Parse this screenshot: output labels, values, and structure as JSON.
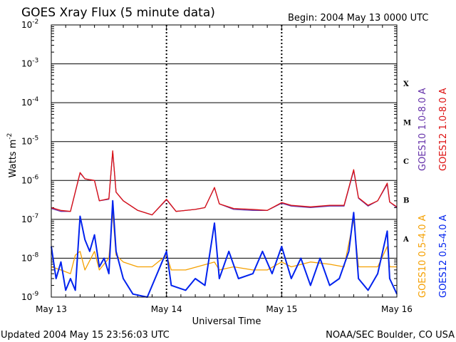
{
  "header": {
    "title": "GOES Xray Flux (5 minute data)",
    "begin": "Begin:  2004 May 13 0000 UTC"
  },
  "footer": {
    "updated": "Updated 2004 May 15 23:56:03 UTC",
    "credit": "NOAA/SEC Boulder, CO USA"
  },
  "chart_data": {
    "type": "line",
    "title": "GOES Xray Flux (5 minute data)",
    "xlabel": "Universal Time",
    "ylabel": "Watts m",
    "ylabel_exponent": "-2",
    "yscale": "log",
    "ylim": [
      1e-09,
      0.01
    ],
    "xlim": [
      0,
      72
    ],
    "x_unit": "hours since 2004 May 13 0000 UTC",
    "x_ticks": [
      {
        "x": 0,
        "label": "May 13"
      },
      {
        "x": 24,
        "label": "May 14"
      },
      {
        "x": 48,
        "label": "May 15"
      },
      {
        "x": 72,
        "label": "May 16"
      }
    ],
    "y_ticks": [
      {
        "mantissa": "10",
        "exp": "-9",
        "value": 1e-09
      },
      {
        "mantissa": "10",
        "exp": "-8",
        "value": 1e-08
      },
      {
        "mantissa": "10",
        "exp": "-7",
        "value": 1e-07
      },
      {
        "mantissa": "10",
        "exp": "-6",
        "value": 1e-06
      },
      {
        "mantissa": "10",
        "exp": "-5",
        "value": 1e-05
      },
      {
        "mantissa": "10",
        "exp": "-4",
        "value": 0.0001
      },
      {
        "mantissa": "10",
        "exp": "-3",
        "value": 0.001
      },
      {
        "mantissa": "10",
        "exp": "-2",
        "value": 0.01
      }
    ],
    "flare_classes": [
      {
        "label": "A",
        "value": 3.16e-08
      },
      {
        "label": "B",
        "value": 3.16e-07
      },
      {
        "label": "C",
        "value": 3.16e-06
      },
      {
        "label": "M",
        "value": 3.16e-05
      },
      {
        "label": "X",
        "value": 0.000316
      }
    ],
    "grid": "horizontal at each decade, dashed verticals at day boundaries",
    "series": [
      {
        "name": "GOES10 1.0-8.0 A",
        "color": "#6633aa",
        "points": [
          [
            0,
            1.9e-07
          ],
          [
            2,
            1.6e-07
          ],
          [
            4,
            1.6e-07
          ],
          [
            6,
            1.55e-06
          ],
          [
            7,
            1.1e-06
          ],
          [
            9,
            1e-06
          ],
          [
            10,
            3e-07
          ],
          [
            12,
            3.3e-07
          ],
          [
            12.8,
            5.5e-06
          ],
          [
            13.5,
            5e-07
          ],
          [
            15,
            3e-07
          ],
          [
            18,
            1.7e-07
          ],
          [
            21,
            1.3e-07
          ],
          [
            24,
            3.2e-07
          ],
          [
            26,
            1.6e-07
          ],
          [
            30,
            1.8e-07
          ],
          [
            32,
            2e-07
          ],
          [
            34,
            6.5e-07
          ],
          [
            35,
            2.5e-07
          ],
          [
            38,
            1.8e-07
          ],
          [
            42,
            1.7e-07
          ],
          [
            45,
            1.7e-07
          ],
          [
            48,
            2.6e-07
          ],
          [
            50,
            2.2e-07
          ],
          [
            54,
            2e-07
          ],
          [
            58,
            2.2e-07
          ],
          [
            61,
            2.2e-07
          ],
          [
            63,
            1.8e-06
          ],
          [
            64,
            3.5e-07
          ],
          [
            66,
            2.2e-07
          ],
          [
            68,
            3e-07
          ],
          [
            70,
            8e-07
          ],
          [
            70.5,
            2.8e-07
          ],
          [
            72,
            2e-07
          ]
        ]
      },
      {
        "name": "GOES12 1.0-8.0 A",
        "color": "#dd1111",
        "points": [
          [
            0,
            2e-07
          ],
          [
            2,
            1.7e-07
          ],
          [
            4,
            1.6e-07
          ],
          [
            6,
            1.6e-06
          ],
          [
            7,
            1.1e-06
          ],
          [
            9,
            1e-06
          ],
          [
            10,
            3e-07
          ],
          [
            12,
            3.4e-07
          ],
          [
            12.8,
            5.8e-06
          ],
          [
            13.5,
            5e-07
          ],
          [
            15,
            3e-07
          ],
          [
            18,
            1.7e-07
          ],
          [
            21,
            1.3e-07
          ],
          [
            24,
            3.3e-07
          ],
          [
            26,
            1.6e-07
          ],
          [
            30,
            1.8e-07
          ],
          [
            32,
            2e-07
          ],
          [
            34,
            6.6e-07
          ],
          [
            35,
            2.5e-07
          ],
          [
            38,
            1.9e-07
          ],
          [
            42,
            1.8e-07
          ],
          [
            45,
            1.7e-07
          ],
          [
            48,
            2.7e-07
          ],
          [
            50,
            2.3e-07
          ],
          [
            54,
            2.1e-07
          ],
          [
            58,
            2.3e-07
          ],
          [
            61,
            2.3e-07
          ],
          [
            63,
            1.9e-06
          ],
          [
            64,
            3.6e-07
          ],
          [
            66,
            2.3e-07
          ],
          [
            68,
            3e-07
          ],
          [
            70,
            8.5e-07
          ],
          [
            70.5,
            2.8e-07
          ],
          [
            72,
            2.1e-07
          ]
        ]
      },
      {
        "name": "GOES10 0.5-4.0 A",
        "color": "#f5a000",
        "points": [
          [
            0,
            6e-09
          ],
          [
            2,
            5e-09
          ],
          [
            4,
            4e-09
          ],
          [
            5,
            1.2e-08
          ],
          [
            6,
            1.5e-08
          ],
          [
            7,
            5e-09
          ],
          [
            9,
            1.5e-08
          ],
          [
            10,
            5e-09
          ],
          [
            12,
            1e-08
          ],
          [
            12.8,
            1.5e-07
          ],
          [
            13.5,
            1.2e-08
          ],
          [
            15,
            8e-09
          ],
          [
            18,
            6e-09
          ],
          [
            21,
            6e-09
          ],
          [
            24,
            1.2e-08
          ],
          [
            25,
            5e-09
          ],
          [
            28,
            5e-09
          ],
          [
            34,
            8e-09
          ],
          [
            35,
            5e-09
          ],
          [
            38,
            6e-09
          ],
          [
            42,
            5e-09
          ],
          [
            45,
            5e-09
          ],
          [
            48,
            8e-09
          ],
          [
            50,
            6e-09
          ],
          [
            54,
            8e-09
          ],
          [
            58,
            7e-09
          ],
          [
            61,
            6e-09
          ],
          [
            63,
            1e-07
          ],
          [
            64,
            6e-09
          ],
          [
            66,
            6e-09
          ],
          [
            68,
            6e-09
          ],
          [
            70,
            2e-08
          ],
          [
            70.5,
            6e-09
          ],
          [
            72,
            6e-09
          ]
        ]
      },
      {
        "name": "GOES12 0.5-4.0 A",
        "color": "#0022ee",
        "points": [
          [
            0,
            2e-08
          ],
          [
            1,
            3e-09
          ],
          [
            2,
            8e-09
          ],
          [
            3,
            1.5e-09
          ],
          [
            4,
            3e-09
          ],
          [
            5,
            1.5e-09
          ],
          [
            6,
            1.2e-07
          ],
          [
            7,
            3e-08
          ],
          [
            8,
            1.5e-08
          ],
          [
            9,
            4e-08
          ],
          [
            10,
            6e-09
          ],
          [
            11,
            1e-08
          ],
          [
            12,
            4e-09
          ],
          [
            12.8,
            3e-07
          ],
          [
            13.5,
            1.5e-08
          ],
          [
            15,
            3e-09
          ],
          [
            17,
            1.2e-09
          ],
          [
            20,
            1e-09
          ],
          [
            24,
            1.5e-08
          ],
          [
            25,
            2e-09
          ],
          [
            28,
            1.5e-09
          ],
          [
            30,
            3e-09
          ],
          [
            32,
            2e-09
          ],
          [
            34,
            8e-08
          ],
          [
            35,
            3e-09
          ],
          [
            37,
            1.5e-08
          ],
          [
            39,
            3e-09
          ],
          [
            42,
            4e-09
          ],
          [
            44,
            1.5e-08
          ],
          [
            46,
            4e-09
          ],
          [
            48,
            2e-08
          ],
          [
            50,
            3e-09
          ],
          [
            52,
            1e-08
          ],
          [
            54,
            2e-09
          ],
          [
            56,
            1e-08
          ],
          [
            58,
            2e-09
          ],
          [
            60,
            3e-09
          ],
          [
            62,
            1.5e-08
          ],
          [
            63,
            1.5e-07
          ],
          [
            64,
            3e-09
          ],
          [
            66,
            1.5e-09
          ],
          [
            68,
            4e-09
          ],
          [
            70,
            5e-08
          ],
          [
            70.5,
            3e-09
          ],
          [
            72,
            1.2e-09
          ]
        ]
      }
    ]
  }
}
